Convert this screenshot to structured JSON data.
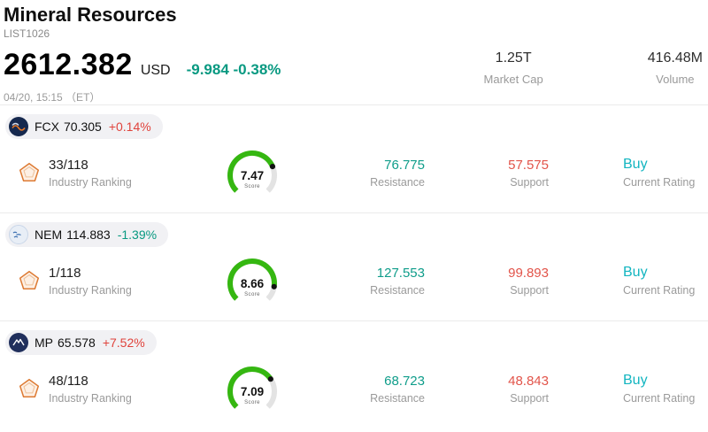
{
  "header": {
    "title": "Mineral Resources",
    "list_id": "LIST1026",
    "price": "2612.382",
    "currency": "USD",
    "change": "-9.984 -0.38%",
    "datetime": "04/20, 15:15 （ET）",
    "market_cap": {
      "value": "1.25T",
      "label": "Market Cap"
    },
    "volume": {
      "value": "416.48M",
      "label": "Volume"
    }
  },
  "labels": {
    "industry_ranking": "Industry Ranking",
    "score": "Score",
    "resistance": "Resistance",
    "support": "Support",
    "current_rating": "Current Rating"
  },
  "colors": {
    "up": "#e0433c",
    "down": "#089981",
    "resistance": "#0f9d8a",
    "support": "#e2544a",
    "buy": "#12b5c0",
    "gauge_green": "#35b711"
  },
  "stocks": [
    {
      "ticker": "FCX",
      "price": "70.305",
      "change": "+0.14%",
      "change_color": "#e0433c",
      "ranking": "33/118",
      "score": 7.47,
      "resistance": "76.775",
      "support": "57.575",
      "rating": "Buy"
    },
    {
      "ticker": "NEM",
      "price": "114.883",
      "change": "-1.39%",
      "change_color": "#089981",
      "ranking": "1/118",
      "score": 8.66,
      "resistance": "127.553",
      "support": "99.893",
      "rating": "Buy"
    },
    {
      "ticker": "MP",
      "price": "65.578",
      "change": "+7.52%",
      "change_color": "#e0433c",
      "ranking": "48/118",
      "score": 7.09,
      "resistance": "68.723",
      "support": "48.843",
      "rating": "Buy"
    }
  ]
}
